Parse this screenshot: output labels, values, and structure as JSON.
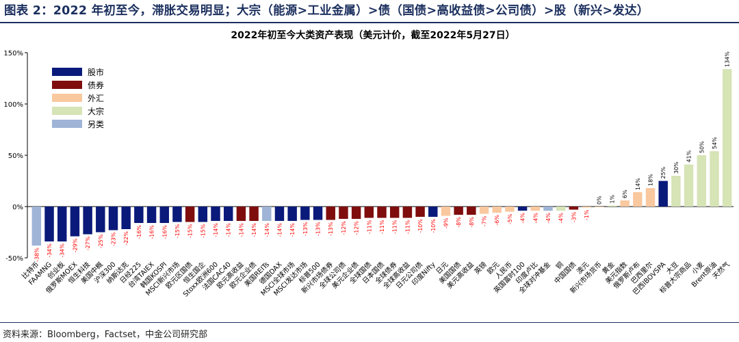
{
  "figure_title": "图表 2：2022 年初至今，滞胀交易明显；大宗（能源>工业金属）>债（国债>高收益债>公司债）>股（新兴>发达）",
  "source_note": "资料来源：Bloomberg，Factset，中金公司研究部",
  "chart_data": {
    "type": "bar",
    "title": "2022年初至今大类资产表现（美元计价，截至2022年5月27日）",
    "ylim": [
      -50,
      150
    ],
    "yticks": [
      -50,
      0,
      50,
      100,
      150
    ],
    "ytick_labels": [
      "-50%",
      "0%",
      "50%",
      "100%",
      "150%"
    ],
    "grid": false,
    "legend_position": "top-left",
    "legend": [
      {
        "key": "equity",
        "name": "股市",
        "color": "#0a1a7a"
      },
      {
        "key": "bond",
        "name": "债券",
        "color": "#7f0d0d"
      },
      {
        "key": "fx",
        "name": "外汇",
        "color": "#f9c89f"
      },
      {
        "key": "commodity",
        "name": "大宗",
        "color": "#d6e4b6"
      },
      {
        "key": "alt",
        "name": "另类",
        "color": "#9fb4d6"
      }
    ],
    "bars": [
      {
        "category": "比特币",
        "value": -38,
        "group": "alt",
        "label": "-38%"
      },
      {
        "category": "FAAMNG",
        "value": -34,
        "group": "equity",
        "label": "-34%"
      },
      {
        "category": "创业板",
        "value": -34,
        "group": "equity",
        "label": "-34%"
      },
      {
        "category": "俄罗斯MOEX",
        "value": -29,
        "group": "equity",
        "label": "-29%"
      },
      {
        "category": "恒生科技",
        "value": -27,
        "group": "equity",
        "label": "-27%"
      },
      {
        "category": "美国中概",
        "value": -25,
        "group": "equity",
        "label": "-25%"
      },
      {
        "category": "沪深300",
        "value": -23,
        "group": "equity",
        "label": "-23%"
      },
      {
        "category": "纳斯达克",
        "value": -22,
        "group": "equity",
        "label": "-22%"
      },
      {
        "category": "日经225",
        "value": -16,
        "group": "equity",
        "label": "-16%"
      },
      {
        "category": "台湾TAIEX",
        "value": -16,
        "group": "equity",
        "label": "-16%"
      },
      {
        "category": "韩国KOSPI",
        "value": -16,
        "group": "equity",
        "label": "-16%"
      },
      {
        "category": "MSCI新兴市场",
        "value": -15,
        "group": "equity",
        "label": "-15%"
      },
      {
        "category": "欧元区国债",
        "value": -15,
        "group": "bond",
        "label": "-15%"
      },
      {
        "category": "恒生国企",
        "value": -15,
        "group": "equity",
        "label": "-15%"
      },
      {
        "category": "Stoxx欧洲600",
        "value": -14,
        "group": "equity",
        "label": "-14%"
      },
      {
        "category": "法国CAC40",
        "value": -14,
        "group": "equity",
        "label": "-14%"
      },
      {
        "category": "欧元高收益",
        "value": -14,
        "group": "bond",
        "label": "-14%"
      },
      {
        "category": "欧元企业债",
        "value": -14,
        "group": "bond",
        "label": "-14%"
      },
      {
        "category": "美国REITs",
        "value": -14,
        "group": "alt",
        "label": "-14%"
      },
      {
        "category": "德国DAX",
        "value": -14,
        "group": "equity",
        "label": "-14%"
      },
      {
        "category": "MSCI全球市场",
        "value": -14,
        "group": "equity",
        "label": "-14%"
      },
      {
        "category": "MSCI发达市场",
        "value": -13,
        "group": "equity",
        "label": "-13%"
      },
      {
        "category": "标普500",
        "value": -13,
        "group": "equity",
        "label": "-13%"
      },
      {
        "category": "新兴市场债券",
        "value": -13,
        "group": "bond",
        "label": "-13%"
      },
      {
        "category": "全球公司债",
        "value": -12,
        "group": "bond",
        "label": "-12%"
      },
      {
        "category": "美元企业债",
        "value": -12,
        "group": "bond",
        "label": "-12%"
      },
      {
        "category": "全球国债",
        "value": -11,
        "group": "bond",
        "label": "-11%"
      },
      {
        "category": "日本国债",
        "value": -11,
        "group": "bond",
        "label": "-11%"
      },
      {
        "category": "全球债券",
        "value": -11,
        "group": "bond",
        "label": "-11%"
      },
      {
        "category": "全球高收益",
        "value": -11,
        "group": "bond",
        "label": "-11%"
      },
      {
        "category": "日元公司债",
        "value": -10,
        "group": "bond",
        "label": "-10%"
      },
      {
        "category": "印度Nifty",
        "value": -10,
        "group": "equity",
        "label": "-10%"
      },
      {
        "category": "日元",
        "value": -9,
        "group": "fx",
        "label": "-9%"
      },
      {
        "category": "美国国债",
        "value": -8,
        "group": "bond",
        "label": "-8%"
      },
      {
        "category": "美元高收益",
        "value": -8,
        "group": "bond",
        "label": "-8%"
      },
      {
        "category": "英镑",
        "value": -7,
        "group": "fx",
        "label": "-7%"
      },
      {
        "category": "欧元",
        "value": -6,
        "group": "fx",
        "label": "-6%"
      },
      {
        "category": "人民币",
        "value": -5,
        "group": "fx",
        "label": "-5%"
      },
      {
        "category": "英国富时100",
        "value": -4,
        "group": "equity",
        "label": "-4%"
      },
      {
        "category": "印度卢比",
        "value": -4,
        "group": "fx",
        "label": "-4%"
      },
      {
        "category": "全球对冲基金",
        "value": -4,
        "group": "alt",
        "label": "-4%"
      },
      {
        "category": "铜",
        "value": -4,
        "group": "commodity",
        "label": "-4%"
      },
      {
        "category": "中国国债",
        "value": -3,
        "group": "bond",
        "label": "-3%"
      },
      {
        "category": "澳元",
        "value": -1,
        "group": "fx",
        "label": "-1%"
      },
      {
        "category": "新兴市场货币",
        "value": 0,
        "group": "fx",
        "label": "0%"
      },
      {
        "category": "黄金",
        "value": 1,
        "group": "commodity",
        "label": "1%"
      },
      {
        "category": "美元指数",
        "value": 6,
        "group": "fx",
        "label": "6%"
      },
      {
        "category": "俄罗斯卢布",
        "value": 14,
        "group": "fx",
        "label": "14%"
      },
      {
        "category": "巴西里尔",
        "value": 18,
        "group": "fx",
        "label": "18%"
      },
      {
        "category": "巴西IBOVSPA",
        "value": 25,
        "group": "equity",
        "label": "25%"
      },
      {
        "category": "大豆",
        "value": 30,
        "group": "commodity",
        "label": "30%"
      },
      {
        "category": "标普大宗商品",
        "value": 41,
        "group": "commodity",
        "label": "41%"
      },
      {
        "category": "小麦",
        "value": 50,
        "group": "commodity",
        "label": "50%"
      },
      {
        "category": "Brent原油",
        "value": 54,
        "group": "commodity",
        "label": "54%"
      },
      {
        "category": "天然气",
        "value": 134,
        "group": "commodity",
        "label": "134%"
      }
    ]
  }
}
